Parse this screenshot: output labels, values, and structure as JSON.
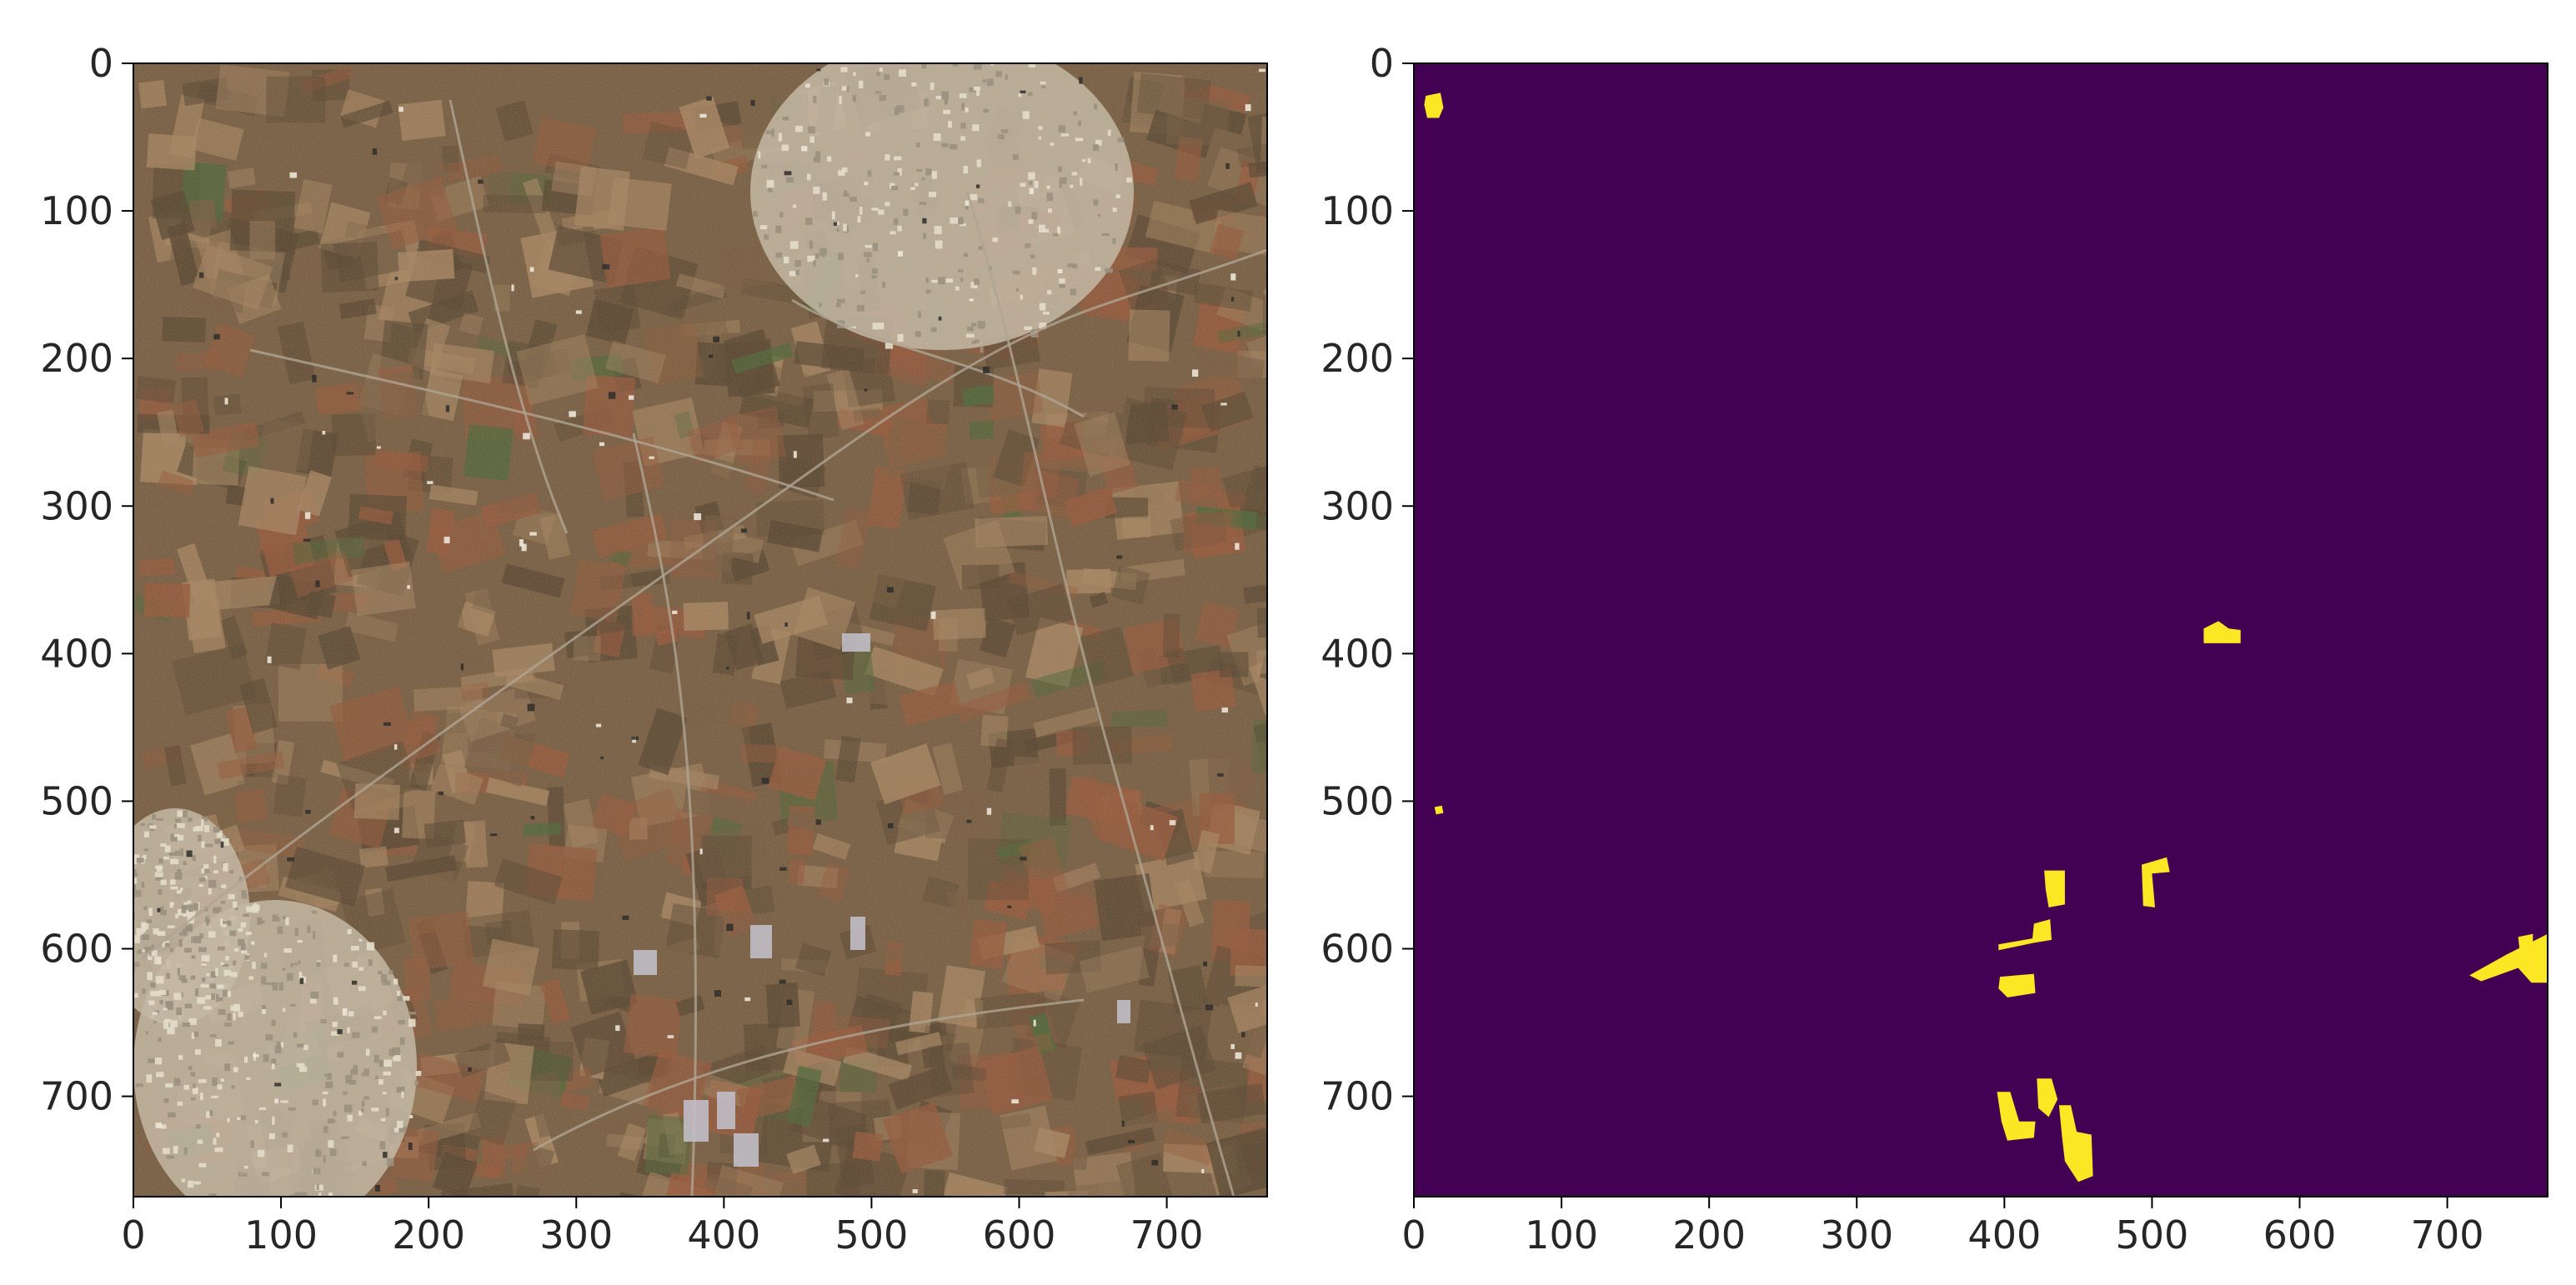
{
  "figure": {
    "panels": [
      {
        "id": "satellite-image",
        "kind": "image",
        "description_icon": "satellite-rgb-image",
        "palette": {
          "base": "#6b5034",
          "field_dark": "#4a3722",
          "field_red": "#8a4a2c",
          "field_tan": "#9c7a55",
          "field_green": "#3f5a2a",
          "urban": "#bdb29d",
          "urban_light": "#e2dbc8",
          "road": "#a59a88",
          "greenhouse": "#b9b7c4",
          "shadow": "#111111"
        },
        "x_ticks": [
          "0",
          "100",
          "200",
          "300",
          "400",
          "500",
          "600",
          "700"
        ],
        "y_ticks": [
          "0",
          "100",
          "200",
          "300",
          "400",
          "500",
          "600",
          "700"
        ]
      },
      {
        "id": "mask-image",
        "kind": "mask",
        "palette": {
          "background": "#440154",
          "foreground": "#fde725"
        },
        "x_ticks": [
          "0",
          "100",
          "200",
          "300",
          "400",
          "500",
          "600",
          "700"
        ],
        "y_ticks": [
          "0",
          "100",
          "200",
          "300",
          "400",
          "500",
          "600",
          "700"
        ]
      }
    ]
  }
}
